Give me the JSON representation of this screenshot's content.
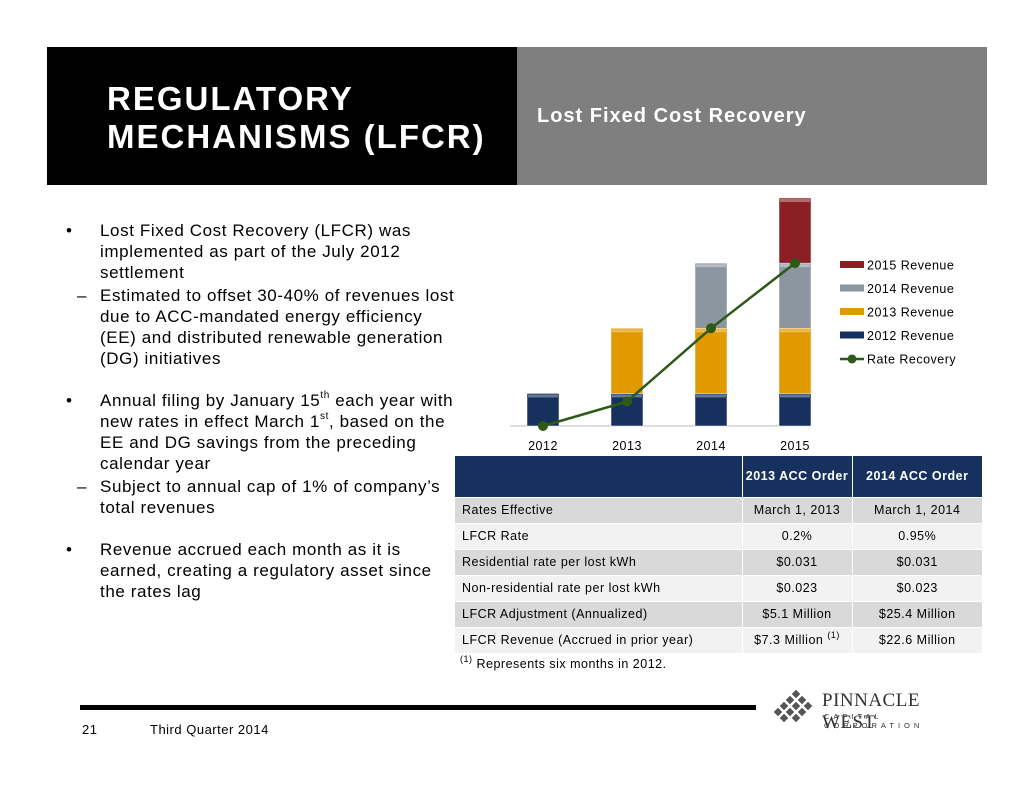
{
  "header": {
    "title": "REGULATORY MECHANISMS (LFCR)",
    "subtitle": "Lost Fixed Cost Recovery"
  },
  "bullets": {
    "b1": "Lost Fixed Cost Recovery (LFCR) was implemented as part of the July 2012 settlement",
    "b1_sub": "Estimated to offset 30-40% of revenues lost due to ACC-mandated energy efficiency (EE) and distributed renewable generation (DG) initiatives",
    "b2_pre": "Annual filing by January 15",
    "b2_sup1": "th",
    "b2_mid": " each year with new rates in effect March 1",
    "b2_sup2": "st",
    "b2_post": ", based on the EE and DG savings from the preceding calendar year",
    "b2_sub": "Subject to annual cap of 1% of company’s total revenues",
    "b3": "Revenue accrued each month as it is earned, creating a regulatory asset since the rates lag",
    "bullet_char": "•",
    "dash_char": "–"
  },
  "chart_data": {
    "type": "bar",
    "stacked": true,
    "categories": [
      "2012",
      "2013",
      "2014",
      "2015"
    ],
    "series": [
      {
        "name": "2012 Revenue",
        "values": [
          1,
          1,
          1,
          1
        ],
        "color": "#16315e"
      },
      {
        "name": "2013 Revenue",
        "values": [
          0,
          2,
          2,
          2
        ],
        "color": "#e09a00"
      },
      {
        "name": "2014 Revenue",
        "values": [
          0,
          0,
          2,
          2
        ],
        "color": "#8c96a0"
      },
      {
        "name": "2015 Revenue",
        "values": [
          0,
          0,
          0,
          2
        ],
        "color": "#8b1f24"
      }
    ],
    "line_series": {
      "name": "Rate Recovery",
      "values": [
        0,
        0.75,
        3,
        5
      ],
      "color": "#2d5a16"
    },
    "legend_order": [
      "2015 Revenue",
      "2014 Revenue",
      "2013 Revenue",
      "2012 Revenue",
      "Rate Recovery"
    ],
    "legend_position": "right",
    "ylim": [
      0,
      7
    ],
    "grid": false,
    "title": "",
    "xlabel": "",
    "ylabel": ""
  },
  "table": {
    "headers": [
      "",
      "2013 ACC Order",
      "2014 ACC Order"
    ],
    "rows": [
      [
        "Rates Effective",
        "March 1, 2013",
        "March 1, 2014"
      ],
      [
        "LFCR Rate",
        "0.2%",
        "0.95%"
      ],
      [
        "Residential rate per lost kWh",
        "$0.031",
        "$0.031"
      ],
      [
        "Non-residential rate per lost kWh",
        "$0.023",
        "$0.023"
      ],
      [
        "LFCR Adjustment (Annualized)",
        "$5.1 Million",
        "$25.4 Million"
      ],
      [
        "LFCR Revenue (Accrued in prior year)",
        "$7.3 Million",
        "$22.6 Million"
      ]
    ],
    "note_marker": "(1)"
  },
  "footnote": {
    "marker": "(1)",
    "text": " Represents six months in 2012."
  },
  "footer": {
    "page_number": "21",
    "label": "Third Quarter 2014"
  },
  "logo": {
    "name": "PINNACLE WEST",
    "sub": "CAPITAL CORPORATION"
  }
}
